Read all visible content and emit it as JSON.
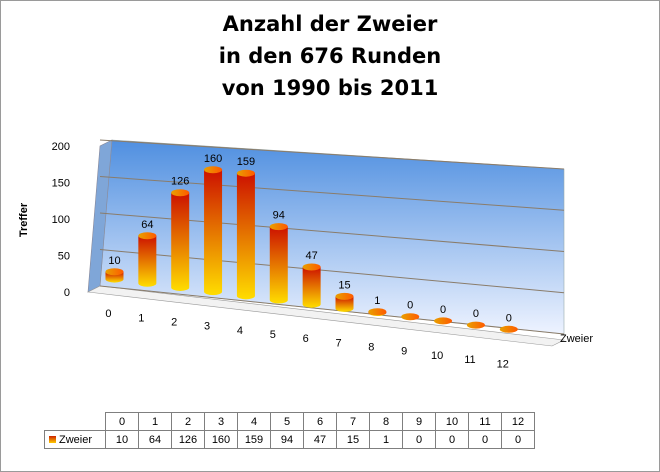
{
  "chart_data": {
    "type": "bar",
    "title_lines": [
      "Anzahl der Zweier",
      "in den 676 Runden",
      "von 1990 bis 2011"
    ],
    "ylabel": "Treffer",
    "xlabel": "Zweier",
    "categories": [
      "0",
      "1",
      "2",
      "3",
      "4",
      "5",
      "6",
      "7",
      "8",
      "9",
      "10",
      "11",
      "12"
    ],
    "series": [
      {
        "name": "Zweier",
        "values": [
          10,
          64,
          126,
          160,
          159,
          94,
          47,
          15,
          1,
          0,
          0,
          0,
          0
        ]
      }
    ],
    "ylim": [
      0,
      200
    ],
    "yticks": [
      0,
      50,
      100,
      150,
      200
    ],
    "grid": true,
    "style": "3d-cylinder",
    "colors": {
      "bar_top": "#cc1100",
      "bar_bottom": "#ffdd00",
      "wall_top": "#4f8fe0",
      "wall_bottom": "#eef3ff",
      "floor": "#f2f2f2"
    }
  }
}
